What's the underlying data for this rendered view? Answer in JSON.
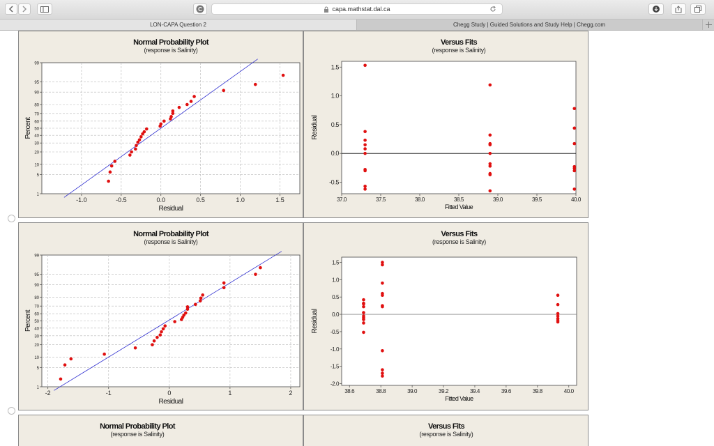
{
  "browser": {
    "url": "capa.mathstat.dal.ca",
    "tabs": [
      {
        "label": "LON-CAPA Question 2",
        "active": true
      },
      {
        "label": "Chegg Study | Guided Solutions and Study Help | Chegg.com",
        "active": false
      }
    ],
    "icons": {
      "back": "chevron-left-icon",
      "forward": "chevron-right-icon",
      "sidebar": "sidebar-icon",
      "site": "circle-logo-icon",
      "lock": "lock-icon",
      "reload": "reload-icon",
      "download": "download-icon",
      "share": "share-icon",
      "tabs": "tabs-overview-icon",
      "new_tab": "plus-icon"
    }
  },
  "options": [
    {
      "npp": {
        "title": "Normal Probability Plot",
        "subtitle": "(response is Salinity)",
        "ylabel": "Percent",
        "xlabel": "Residual"
      },
      "vf": {
        "title": "Versus Fits",
        "subtitle": "(response is Salinity)",
        "ylabel": "Residual",
        "xlabel": "Fitted Value"
      }
    },
    {
      "npp": {
        "title": "Normal Probability Plot",
        "subtitle": "(response is Salinity)",
        "ylabel": "Percent",
        "xlabel": "Residual"
      },
      "vf": {
        "title": "Versus Fits",
        "subtitle": "(response is Salinity)",
        "ylabel": "Residual",
        "xlabel": "Fitted Value"
      }
    },
    {
      "npp": {
        "title": "Normal Probability Plot",
        "subtitle": "(response is Salinity)"
      },
      "vf": {
        "title": "Versus Fits",
        "subtitle": "(response is Salinity)"
      }
    }
  ],
  "chart_data": [
    {
      "type": "scatter",
      "title": "Normal Probability Plot",
      "subtitle": "(response is Salinity)",
      "xlabel": "Residual",
      "ylabel": "Percent",
      "xlim": [
        -1.5,
        1.75
      ],
      "xticks": [
        -1.0,
        -0.5,
        0.0,
        0.5,
        1.0,
        1.5
      ],
      "xtick_labels": [
        "-1.0",
        "-0.5",
        "0.0",
        "0.5",
        "1.0",
        "1.5"
      ],
      "ylim": [
        1,
        99
      ],
      "yticks": [
        1,
        5,
        10,
        20,
        30,
        40,
        50,
        60,
        70,
        80,
        90,
        95,
        99
      ],
      "grid": true,
      "series": [
        {
          "points": [
            [
              -0.66,
              3
            ],
            [
              -0.64,
              6
            ],
            [
              -0.62,
              9
            ],
            [
              -0.58,
              12
            ],
            [
              -0.39,
              17
            ],
            [
              -0.37,
              20
            ],
            [
              -0.32,
              23
            ],
            [
              -0.31,
              27
            ],
            [
              -0.29,
              31
            ],
            [
              -0.27,
              34
            ],
            [
              -0.25,
              38
            ],
            [
              -0.23,
              42
            ],
            [
              -0.21,
              45
            ],
            [
              -0.18,
              49
            ],
            [
              -0.01,
              53
            ],
            [
              0.0,
              56
            ],
            [
              0.04,
              60
            ],
            [
              0.12,
              63
            ],
            [
              0.13,
              66
            ],
            [
              0.15,
              70
            ],
            [
              0.15,
              73
            ],
            [
              0.23,
              77
            ],
            [
              0.33,
              80
            ],
            [
              0.38,
              83
            ],
            [
              0.42,
              87
            ],
            [
              0.79,
              91
            ],
            [
              1.19,
              94
            ],
            [
              1.54,
              97
            ]
          ]
        }
      ],
      "fit_line": [
        [
          -1.22,
          0.7
        ],
        [
          1.22,
          99.3
        ]
      ],
      "colors": {
        "points": "#e01010",
        "line": "#3030d0",
        "plot_bg": "#ffffff",
        "panel_bg": "#f0ece3"
      }
    },
    {
      "type": "scatter",
      "title": "Versus Fits",
      "subtitle": "(response is Salinity)",
      "xlabel": "Fitted Value",
      "ylabel": "Residual",
      "xlim": [
        37.0,
        40.0
      ],
      "xticks": [
        37.0,
        37.5,
        38.0,
        38.5,
        39.0,
        39.5,
        40.0
      ],
      "xtick_labels": [
        "37.0",
        "37.5",
        "38.0",
        "38.5",
        "39.0",
        "39.5",
        "40.0"
      ],
      "ylim": [
        -0.7,
        1.6
      ],
      "yticks": [
        -0.5,
        0.0,
        0.5,
        1.0,
        1.5
      ],
      "ytick_labels": [
        "-0.5",
        "0.0",
        "0.5",
        "1.0",
        "1.5"
      ],
      "reference_line": 0,
      "series": [
        {
          "points": [
            [
              37.3,
              1.53
            ],
            [
              37.3,
              0.38
            ],
            [
              37.3,
              0.23
            ],
            [
              37.3,
              0.15
            ],
            [
              37.3,
              0.08
            ],
            [
              37.3,
              0.0
            ],
            [
              37.3,
              -0.28
            ],
            [
              37.3,
              -0.3
            ],
            [
              37.3,
              -0.57
            ],
            [
              37.3,
              -0.62
            ],
            [
              38.9,
              1.19
            ],
            [
              38.9,
              0.32
            ],
            [
              38.9,
              0.17
            ],
            [
              38.9,
              0.15
            ],
            [
              38.9,
              0.0
            ],
            [
              38.9,
              -0.18
            ],
            [
              38.9,
              -0.22
            ],
            [
              38.9,
              -0.35
            ],
            [
              38.9,
              -0.37
            ],
            [
              38.9,
              -0.65
            ],
            [
              39.98,
              0.78
            ],
            [
              39.98,
              0.44
            ],
            [
              39.98,
              0.17
            ],
            [
              39.98,
              -0.23
            ],
            [
              39.98,
              -0.26
            ],
            [
              39.98,
              -0.3
            ],
            [
              39.98,
              -0.62
            ]
          ]
        }
      ],
      "colors": {
        "points": "#e01010",
        "line": "#000000"
      }
    },
    {
      "type": "scatter",
      "title": "Normal Probability Plot",
      "subtitle": "(response is Salinity)",
      "xlabel": "Residual",
      "ylabel": "Percent",
      "xlim": [
        -2.1,
        2.15
      ],
      "xticks": [
        -2,
        -1,
        0,
        1,
        2
      ],
      "xtick_labels": [
        "-2",
        "-1",
        "0",
        "1",
        "2"
      ],
      "ylim": [
        1,
        99
      ],
      "yticks": [
        1,
        5,
        10,
        20,
        30,
        40,
        50,
        60,
        70,
        80,
        90,
        95,
        99
      ],
      "grid": true,
      "series": [
        {
          "points": [
            [
              -1.79,
              2
            ],
            [
              -1.72,
              6
            ],
            [
              -1.62,
              9
            ],
            [
              -1.07,
              12
            ],
            [
              -0.56,
              17
            ],
            [
              -0.28,
              20
            ],
            [
              -0.25,
              24
            ],
            [
              -0.2,
              28
            ],
            [
              -0.15,
              31
            ],
            [
              -0.13,
              35
            ],
            [
              -0.1,
              39
            ],
            [
              -0.07,
              43
            ],
            [
              0.09,
              49
            ],
            [
              0.2,
              52
            ],
            [
              0.22,
              55
            ],
            [
              0.24,
              58
            ],
            [
              0.27,
              61
            ],
            [
              0.3,
              66
            ],
            [
              0.3,
              69
            ],
            [
              0.43,
              72
            ],
            [
              0.51,
              76
            ],
            [
              0.52,
              79
            ],
            [
              0.55,
              82
            ],
            [
              0.9,
              88
            ],
            [
              0.9,
              91
            ],
            [
              1.42,
              95
            ],
            [
              1.5,
              97
            ]
          ]
        }
      ],
      "fit_line": [
        [
          -1.9,
          0.7
        ],
        [
          1.85,
          99.3
        ]
      ],
      "colors": {
        "points": "#e01010",
        "line": "#3030d0"
      }
    },
    {
      "type": "scatter",
      "title": "Versus Fits",
      "subtitle": "(response is Salinity)",
      "xlabel": "Fitted Value",
      "ylabel": "Residual",
      "xlim": [
        38.55,
        40.05
      ],
      "xticks": [
        38.6,
        38.8,
        39.0,
        39.2,
        39.4,
        39.6,
        39.8,
        40.0
      ],
      "xtick_labels": [
        "38.6",
        "38.8",
        "39.0",
        "39.2",
        "39.4",
        "39.6",
        "39.8",
        "40.0"
      ],
      "ylim": [
        -2.05,
        1.65
      ],
      "yticks": [
        -2.0,
        -1.5,
        -1.0,
        -0.5,
        0.0,
        0.5,
        1.0,
        1.5
      ],
      "ytick_labels": [
        "-2.0",
        "-1.5",
        "-1.0",
        "-0.5",
        "0.0",
        "0.5",
        "1.0",
        "1.5"
      ],
      "reference_line": 0,
      "series": [
        {
          "points": [
            [
              38.69,
              0.42
            ],
            [
              38.69,
              0.32
            ],
            [
              38.69,
              0.3
            ],
            [
              38.69,
              0.22
            ],
            [
              38.69,
              0.05
            ],
            [
              38.69,
              -0.05
            ],
            [
              38.69,
              -0.1
            ],
            [
              38.69,
              -0.15
            ],
            [
              38.69,
              -0.25
            ],
            [
              38.69,
              -0.52
            ],
            [
              38.81,
              1.5
            ],
            [
              38.81,
              1.43
            ],
            [
              38.81,
              0.9
            ],
            [
              38.81,
              0.6
            ],
            [
              38.81,
              0.55
            ],
            [
              38.81,
              0.25
            ],
            [
              38.81,
              0.22
            ],
            [
              38.81,
              -1.05
            ],
            [
              38.81,
              -1.6
            ],
            [
              38.81,
              -1.7
            ],
            [
              38.81,
              -1.78
            ],
            [
              39.93,
              0.55
            ],
            [
              39.93,
              0.28
            ],
            [
              39.93,
              0.02
            ],
            [
              39.93,
              -0.05
            ],
            [
              39.93,
              -0.12
            ],
            [
              39.93,
              -0.17
            ],
            [
              39.93,
              -0.22
            ]
          ]
        }
      ],
      "colors": {
        "points": "#e01010",
        "line": "#888888"
      }
    }
  ]
}
